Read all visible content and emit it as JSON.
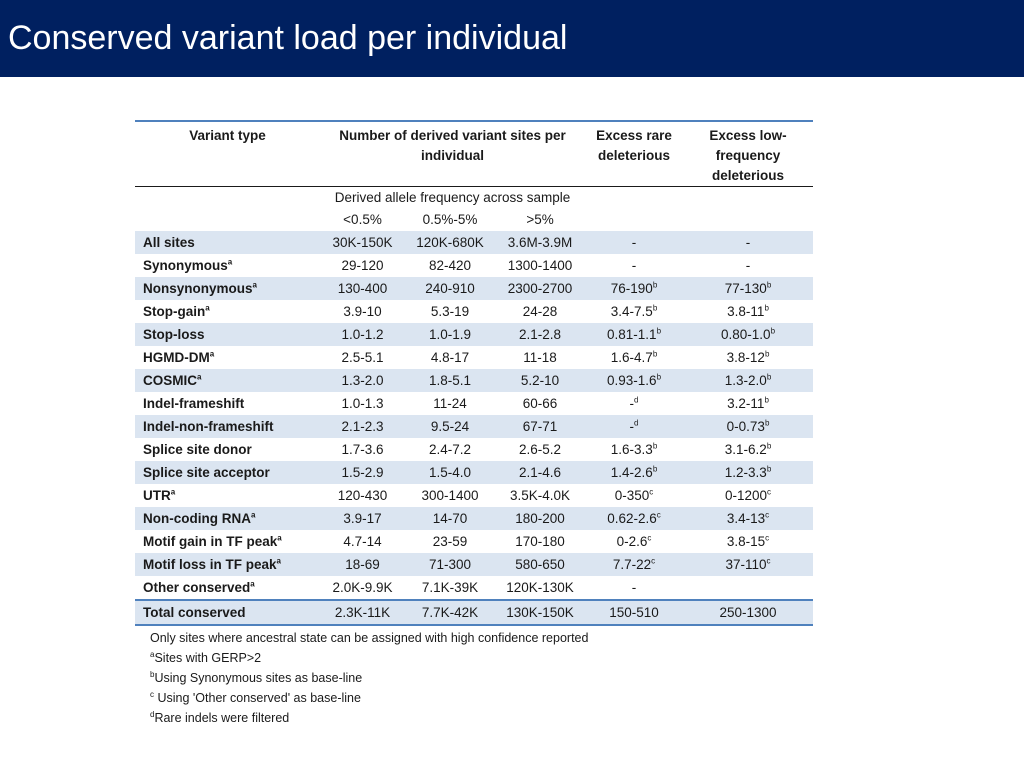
{
  "slide": {
    "title": "Conserved variant load per individual",
    "accent_color": "#002060",
    "row_shade_color": "#dbe5f1",
    "rule_color": "#4f81bd"
  },
  "table": {
    "headers": {
      "variant_type": "Variant type",
      "derived_sites": "Number of derived variant sites per individual",
      "excess_rare": "Excess rare deleterious",
      "excess_low": "Excess low-frequency deleterious",
      "daf_label": "Derived allele frequency across sample",
      "bins": [
        "<0.5%",
        "0.5%-5%",
        ">5%"
      ]
    },
    "rows": [
      {
        "type": "All sites",
        "sup": "",
        "a": "30K-150K",
        "b": "120K-680K",
        "c": "3.6M-3.9M",
        "rare": "-",
        "rare_sup": "",
        "low": "-",
        "low_sup": "",
        "shade": true
      },
      {
        "type": "Synonymous",
        "sup": "a",
        "a": "29-120",
        "b": "82-420",
        "c": "1300-1400",
        "rare": "-",
        "rare_sup": "",
        "low": "-",
        "low_sup": "",
        "shade": false
      },
      {
        "type": "Nonsynonymous",
        "sup": "a",
        "a": "130-400",
        "b": "240-910",
        "c": "2300-2700",
        "rare": "76-190",
        "rare_sup": "b",
        "low": "77-130",
        "low_sup": "b",
        "shade": true
      },
      {
        "type": "Stop-gain",
        "sup": "a",
        "a": "3.9-10",
        "b": "5.3-19",
        "c": "24-28",
        "rare": "3.4-7.5",
        "rare_sup": "b",
        "low": "3.8-11",
        "low_sup": "b",
        "shade": false
      },
      {
        "type": "Stop-loss",
        "sup": "",
        "a": "1.0-1.2",
        "b": "1.0-1.9",
        "c": "2.1-2.8",
        "rare": "0.81-1.1",
        "rare_sup": "b",
        "low": "0.80-1.0",
        "low_sup": "b",
        "shade": true
      },
      {
        "type": "HGMD-DM",
        "sup": "a",
        "a": "2.5-5.1",
        "b": "4.8-17",
        "c": "11-18",
        "rare": "1.6-4.7",
        "rare_sup": "b",
        "low": "3.8-12",
        "low_sup": "b",
        "shade": false
      },
      {
        "type": "COSMIC",
        "sup": "a",
        "a": "1.3-2.0",
        "b": "1.8-5.1",
        "c": "5.2-10",
        "rare": "0.93-1.6",
        "rare_sup": "b",
        "low": "1.3-2.0",
        "low_sup": "b",
        "shade": true
      },
      {
        "type": "Indel-frameshift",
        "sup": "",
        "a": "1.0-1.3",
        "b": "11-24",
        "c": "60-66",
        "rare": "-",
        "rare_sup": "d",
        "low": "3.2-11",
        "low_sup": "b",
        "shade": false
      },
      {
        "type": "Indel-non-frameshift",
        "sup": "",
        "a": "2.1-2.3",
        "b": "9.5-24",
        "c": "67-71",
        "rare": "-",
        "rare_sup": "d",
        "low": "0-0.73",
        "low_sup": "b",
        "shade": true
      },
      {
        "type": "Splice site donor",
        "sup": "",
        "a": "1.7-3.6",
        "b": "2.4-7.2",
        "c": "2.6-5.2",
        "rare": "1.6-3.3",
        "rare_sup": "b",
        "low": "3.1-6.2",
        "low_sup": "b",
        "shade": false
      },
      {
        "type": "Splice site acceptor",
        "sup": "",
        "a": "1.5-2.9",
        "b": "1.5-4.0",
        "c": "2.1-4.6",
        "rare": "1.4-2.6",
        "rare_sup": "b",
        "low": "1.2-3.3",
        "low_sup": "b",
        "shade": true
      },
      {
        "type": "UTR",
        "sup": "a",
        "a": "120-430",
        "b": "300-1400",
        "c": "3.5K-4.0K",
        "rare": "0-350",
        "rare_sup": "c",
        "low": "0-1200",
        "low_sup": "c",
        "shade": false
      },
      {
        "type": "Non-coding RNA",
        "sup": "a",
        "a": "3.9-17",
        "b": "14-70",
        "c": "180-200",
        "rare": "0.62-2.6",
        "rare_sup": "c",
        "low": "3.4-13",
        "low_sup": "c",
        "shade": true
      },
      {
        "type": "Motif gain in TF peak",
        "sup": "a",
        "a": "4.7-14",
        "b": "23-59",
        "c": "170-180",
        "rare": "0-2.6",
        "rare_sup": "c",
        "low": "3.8-15",
        "low_sup": "c",
        "shade": false
      },
      {
        "type": "Motif loss in TF peak",
        "sup": "a",
        "a": "18-69",
        "b": "71-300",
        "c": "580-650",
        "rare": "7.7-22",
        "rare_sup": "c",
        "low": "37-110",
        "low_sup": "c",
        "shade": true
      },
      {
        "type": "Other conserved",
        "sup": "a",
        "a": "2.0K-9.9K",
        "b": "7.1K-39K",
        "c": "120K-130K",
        "rare": "-",
        "rare_sup": "",
        "low": "",
        "low_sup": "",
        "shade": false
      },
      {
        "type": "Total conserved",
        "sup": "",
        "a": "2.3K-11K",
        "b": "7.7K-42K",
        "c": "130K-150K",
        "rare": "150-510",
        "rare_sup": "",
        "low": "250-1300",
        "low_sup": "",
        "shade": true,
        "total": true
      }
    ]
  },
  "footnotes": {
    "note": "Only sites where ancestral state can be assigned with high confidence reported",
    "a_mark": "a",
    "a_text": "Sites with GERP>2",
    "b_mark": "b",
    "b_text": "Using Synonymous sites as base-line",
    "c_mark": "c",
    "c_text": " Using 'Other conserved' as base-line",
    "d_mark": "d",
    "d_text": "Rare indels were filtered"
  }
}
